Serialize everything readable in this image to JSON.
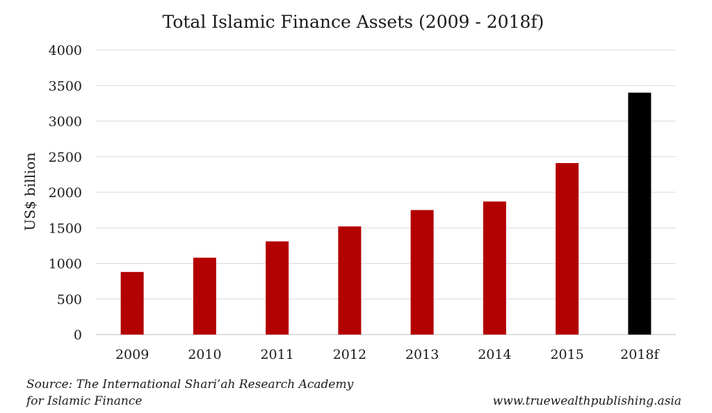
{
  "chart_data": {
    "type": "bar",
    "title": "Total Islamic Finance Assets (2009 - 2018f)",
    "xlabel": "",
    "ylabel": "US$ billion",
    "categories": [
      "2009",
      "2010",
      "2011",
      "2012",
      "2013",
      "2014",
      "2015",
      "2018f"
    ],
    "values": [
      880,
      1080,
      1310,
      1520,
      1750,
      1870,
      2410,
      3400
    ],
    "bar_colors": [
      "#b30000",
      "#b30000",
      "#b30000",
      "#b30000",
      "#b30000",
      "#b30000",
      "#b30000",
      "#000000"
    ],
    "ylim": [
      0,
      4000
    ],
    "yticks": [
      0,
      500,
      1000,
      1500,
      2000,
      2500,
      3000,
      3500,
      4000
    ],
    "grid": true,
    "legend": "none"
  },
  "footer": {
    "source_line1": "Source: The International Shari’ah Research Academy",
    "source_line2": "for Islamic Finance",
    "website": "www.truewealthpublishing.asia"
  }
}
